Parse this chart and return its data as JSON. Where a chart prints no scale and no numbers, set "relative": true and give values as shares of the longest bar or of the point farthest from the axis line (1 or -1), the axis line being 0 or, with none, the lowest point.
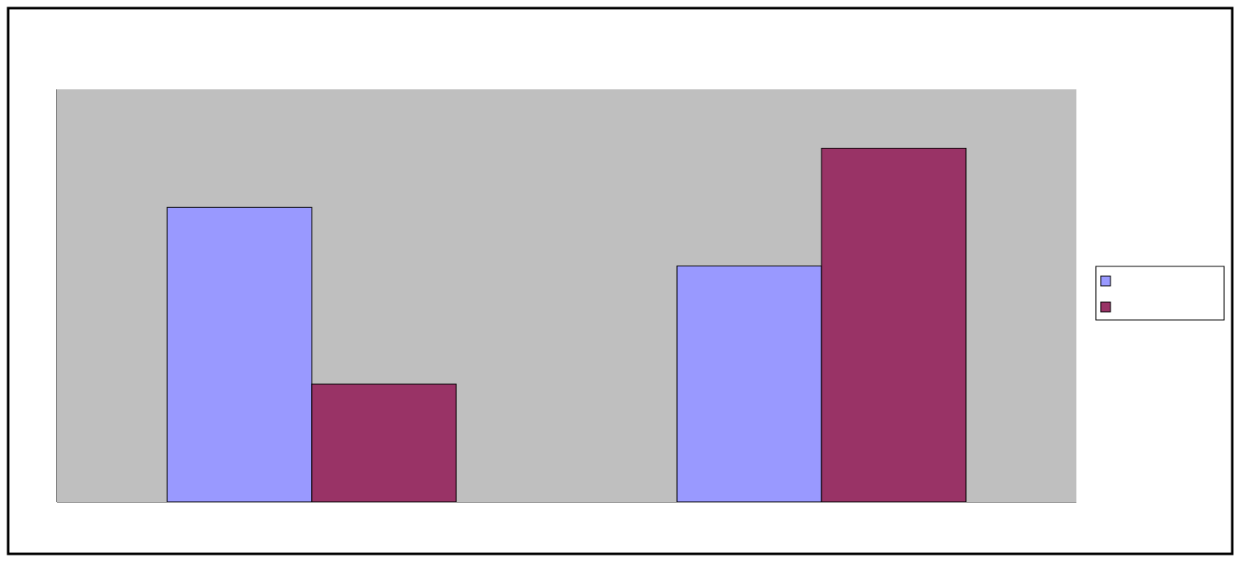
{
  "chart_data": {
    "type": "bar",
    "relative": true,
    "categories": [
      null,
      null
    ],
    "series": [
      {
        "color": "#9999ff",
        "values": [
          0.833,
          0.667
        ]
      },
      {
        "color": "#993366",
        "values": [
          0.333,
          1
        ]
      }
    ]
  }
}
